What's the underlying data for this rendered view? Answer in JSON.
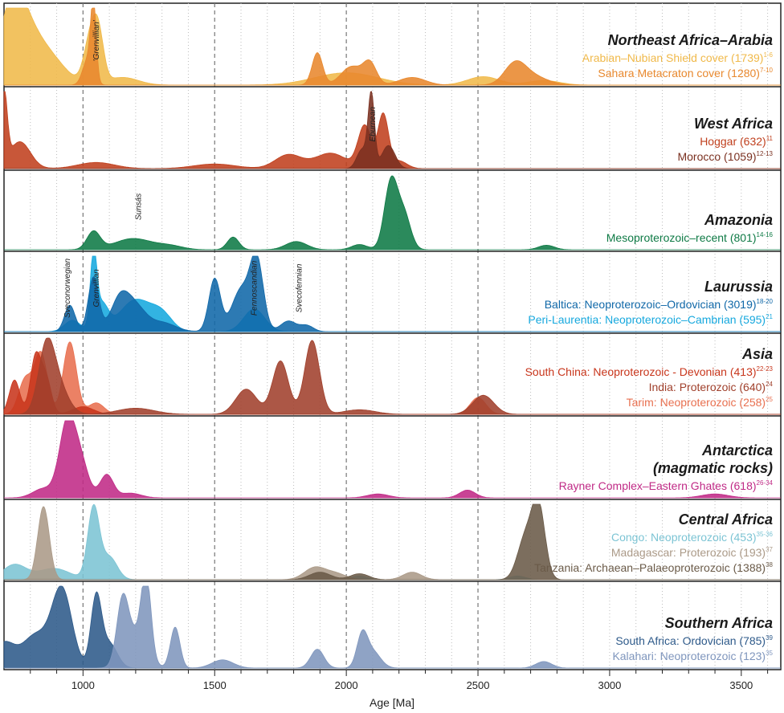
{
  "chart_data": {
    "type": "area",
    "xlabel": "Age [Ma]",
    "xlim": [
      700,
      3650
    ],
    "xticks": [
      1000,
      1500,
      2000,
      2500,
      3000,
      3500
    ],
    "minor_step": 100,
    "dashed_lines": [
      1000,
      1500,
      2000,
      2500
    ],
    "panels": [
      {
        "title_lines": [
          "Northeast Africa–Arabia"
        ],
        "entries": [
          {
            "label": "Arabian–Nubian Shield cover (1739)",
            "sup": "1-6",
            "color": "#f0b94a"
          },
          {
            "label": "Sahara Metacraton cover (1280)",
            "sup": "7-10",
            "color": "#e8882e"
          }
        ],
        "series": [
          {
            "name": "Arabian–Nubian Shield cover (1739)",
            "color": "#f0b94a",
            "peaks": [
              [
                700,
                0.04,
                30
              ],
              [
                730,
                0.88,
                45
              ],
              [
                790,
                0.55,
                55
              ],
              [
                880,
                0.3,
                60
              ],
              [
                1030,
                0.62,
                25
              ],
              [
                1060,
                0.5,
                20
              ],
              [
                1150,
                0.1,
                60
              ],
              [
                2000,
                0.16,
                120
              ],
              [
                2520,
                0.11,
                60
              ],
              [
                2750,
                0.06,
                60
              ]
            ]
          },
          {
            "name": "Sahara Metacraton cover (1280)",
            "color": "#e8882e",
            "peaks": [
              [
                1040,
                0.95,
                10
              ],
              [
                1020,
                0.35,
                20
              ],
              [
                1890,
                0.42,
                20
              ],
              [
                2020,
                0.24,
                40
              ],
              [
                2090,
                0.27,
                25
              ],
              [
                2250,
                0.1,
                50
              ],
              [
                2640,
                0.24,
                40
              ],
              [
                2700,
                0.12,
                60
              ]
            ]
          }
        ]
      },
      {
        "title_lines": [
          "West Africa"
        ],
        "entries": [
          {
            "label": "Hoggar (632)",
            "sup": "11",
            "color": "#c0401e"
          },
          {
            "label": "Morocco (1059)",
            "sup": "12-13",
            "color": "#7a3020"
          }
        ],
        "series": [
          {
            "name": "Hoggar (632)",
            "color": "#c0401e",
            "peaks": [
              [
                700,
                0.95,
                12
              ],
              [
                760,
                0.35,
                40
              ],
              [
                1050,
                0.08,
                70
              ],
              [
                1500,
                0.06,
                80
              ],
              [
                1780,
                0.18,
                50
              ],
              [
                1940,
                0.2,
                60
              ],
              [
                2070,
                0.55,
                25
              ],
              [
                2140,
                0.7,
                20
              ],
              [
                2200,
                0.1,
                30
              ]
            ]
          },
          {
            "name": "Morocco (1059)",
            "color": "#7a3020",
            "peaks": [
              [
                2095,
                0.95,
                12
              ],
              [
                2160,
                0.3,
                25
              ],
              [
                2060,
                0.25,
                20
              ]
            ]
          }
        ]
      },
      {
        "title_lines": [
          "Amazonia"
        ],
        "entries": [
          {
            "label": "Mesoproterozoic–recent (801)",
            "sup": "14-16",
            "color": "#0e7a45"
          }
        ],
        "series": [
          {
            "name": "Mesoproterozoic–recent (801)",
            "color": "#0e7a45",
            "peaks": [
              [
                1040,
                0.24,
                25
              ],
              [
                1190,
                0.15,
                70
              ],
              [
                1330,
                0.05,
                50
              ],
              [
                1570,
                0.17,
                22
              ],
              [
                1810,
                0.11,
                40
              ],
              [
                2050,
                0.07,
                30
              ],
              [
                2170,
                0.92,
                25
              ],
              [
                2220,
                0.45,
                25
              ],
              [
                2760,
                0.06,
                30
              ]
            ]
          }
        ]
      },
      {
        "title_lines": [
          "Laurussia"
        ],
        "entries": [
          {
            "label": "Baltica: Neoproterozoic–Ordovician (3019)",
            "sup": "18-20",
            "color": "#1068a8"
          },
          {
            "label": "Peri-Laurentia: Neoproterozoic–Cambrian (595)",
            "sup": "21",
            "color": "#16a8de"
          }
        ],
        "series": [
          {
            "name": "Peri-Laurentia: Neoproterozoic–Cambrian (595)",
            "color": "#16a8de",
            "peaks": [
              [
                1040,
                0.95,
                12
              ],
              [
                1070,
                0.35,
                25
              ],
              [
                1200,
                0.42,
                60
              ],
              [
                1300,
                0.2,
                40
              ],
              [
                960,
                0.15,
                30
              ],
              [
                1650,
                0.3,
                40
              ]
            ]
          },
          {
            "name": "Baltica: Neoproterozoic–Ordovician (3019)",
            "color": "#1068a8",
            "peaks": [
              [
                950,
                0.35,
                20
              ],
              [
                1040,
                0.72,
                20
              ],
              [
                1140,
                0.42,
                35
              ],
              [
                1200,
                0.3,
                40
              ],
              [
                1300,
                0.12,
                50
              ],
              [
                1500,
                0.7,
                22
              ],
              [
                1600,
                0.55,
                35
              ],
              [
                1660,
                0.92,
                25
              ],
              [
                1780,
                0.14,
                30
              ],
              [
                1850,
                0.08,
                25
              ]
            ]
          }
        ]
      },
      {
        "title_lines": [
          "Asia"
        ],
        "entries": [
          {
            "label": "South China: Neoproterozoic - Devonian (413)",
            "sup": "22-23",
            "color": "#c8361c"
          },
          {
            "label": "India: Proterozoic (640)",
            "sup": "24",
            "color": "#a0402c"
          },
          {
            "label": "Tarim: Neoproterozoic (258)",
            "sup": "25",
            "color": "#e87050"
          }
        ],
        "series": [
          {
            "name": "Tarim: Neoproterozoic (258)",
            "color": "#e87050",
            "peaks": [
              [
                780,
                0.45,
                25
              ],
              [
                840,
                0.8,
                25
              ],
              [
                950,
                0.95,
                25
              ],
              [
                1050,
                0.15,
                30
              ],
              [
                2500,
                0.22,
                30
              ]
            ]
          },
          {
            "name": "South China: Neoproterozoic - Devonian (413)",
            "color": "#c8361c",
            "peaks": [
              [
                740,
                0.45,
                20
              ],
              [
                820,
                0.75,
                20
              ],
              [
                860,
                0.45,
                20
              ],
              [
                1000,
                0.1,
                40
              ]
            ]
          },
          {
            "name": "India: Proterozoic (640)",
            "color": "#a0402c",
            "peaks": [
              [
                860,
                0.75,
                30
              ],
              [
                900,
                0.4,
                40
              ],
              [
                1200,
                0.08,
                70
              ],
              [
                1620,
                0.33,
                40
              ],
              [
                1750,
                0.7,
                30
              ],
              [
                1870,
                0.97,
                28
              ],
              [
                2050,
                0.06,
                60
              ],
              [
                2520,
                0.25,
                40
              ]
            ]
          }
        ]
      },
      {
        "title_lines": [
          "Antarctica",
          "(magmatic rocks)"
        ],
        "entries": [
          {
            "label": "Rayner Complex–Eastern Ghates (618)",
            "sup": "26-34",
            "color": "#c02a86"
          }
        ],
        "series": [
          {
            "name": "Rayner Complex–Eastern Ghates (618)",
            "color": "#c02a86",
            "peaks": [
              [
                940,
                0.95,
                30
              ],
              [
                990,
                0.45,
                30
              ],
              [
                1090,
                0.3,
                25
              ],
              [
                850,
                0.12,
                40
              ],
              [
                1180,
                0.06,
                40
              ],
              [
                2120,
                0.05,
                40
              ],
              [
                2460,
                0.1,
                30
              ],
              [
                3400,
                0.05,
                50
              ]
            ]
          }
        ]
      },
      {
        "title_lines": [
          "Central Africa"
        ],
        "entries": [
          {
            "label": "Congo: Neoproterozoic (453)",
            "sup": "35-36",
            "color": "#7cc4d4"
          },
          {
            "label": "Madagascar: Proterozoic (193)",
            "sup": "37",
            "color": "#ab9a88"
          },
          {
            "label": "Tanzania: Archaean–Palaeoproterozoic (1388)",
            "sup": "38",
            "color": "#6a5a48"
          }
        ],
        "series": [
          {
            "name": "Congo: Neoproterozoic (453)",
            "color": "#7cc4d4",
            "peaks": [
              [
                740,
                0.2,
                45
              ],
              [
                890,
                0.15,
                60
              ],
              [
                1040,
                0.95,
                22
              ],
              [
                1100,
                0.3,
                30
              ],
              [
                2050,
                0.05,
                30
              ],
              [
                2650,
                0.05,
                30
              ]
            ]
          },
          {
            "name": "Madagascar: Proterozoic (193)",
            "color": "#ab9a88",
            "peaks": [
              [
                850,
                0.97,
                22
              ],
              [
                1880,
                0.16,
                40
              ],
              [
                1960,
                0.08,
                40
              ],
              [
                2250,
                0.1,
                35
              ]
            ]
          },
          {
            "name": "Tanzania: Archaean–Palaeoproterozoic (1388)",
            "color": "#6a5a48",
            "peaks": [
              [
                2730,
                0.95,
                25
              ],
              [
                2680,
                0.55,
                30
              ],
              [
                1900,
                0.1,
                40
              ],
              [
                2050,
                0.08,
                35
              ]
            ]
          }
        ]
      },
      {
        "title_lines": [
          "Southern Africa"
        ],
        "entries": [
          {
            "label": "South Africa: Ordovician (785)",
            "sup": "39",
            "color": "#2e5a8a"
          },
          {
            "label": "Kalahari: Neoproterozoic (123)",
            "sup": "35",
            "color": "#7f96bd"
          }
        ],
        "series": [
          {
            "name": "South Africa: Ordovician (785)",
            "color": "#2e5a8a",
            "peaks": [
              [
                700,
                0.3,
                40
              ],
              [
                820,
                0.4,
                50
              ],
              [
                920,
                0.95,
                38
              ],
              [
                1050,
                0.85,
                20
              ],
              [
                1100,
                0.3,
                30
              ]
            ]
          },
          {
            "name": "Kalahari: Neoproterozoic (123)",
            "color": "#7f96bd",
            "peaks": [
              [
                1150,
                0.72,
                22
              ],
              [
                1240,
                0.95,
                18
              ],
              [
                1350,
                0.5,
                18
              ],
              [
                1200,
                0.4,
                40
              ],
              [
                1530,
                0.1,
                40
              ],
              [
                1890,
                0.23,
                25
              ],
              [
                2060,
                0.38,
                20
              ],
              [
                2100,
                0.2,
                30
              ],
              [
                2750,
                0.08,
                30
              ]
            ]
          }
        ]
      }
    ],
    "annotations": [
      {
        "text": "'Grenvillian'",
        "x": 1060,
        "panel": 0
      },
      {
        "text": "Eburnean",
        "x": 2110,
        "panel": 1
      },
      {
        "text": "Sunsás",
        "x": 1220,
        "panel": 2
      },
      {
        "text": "Sveconorwegian",
        "x": 950,
        "panel": 3
      },
      {
        "text": "Grenvillian",
        "x": 1060,
        "panel": 3
      },
      {
        "text": "Fennoscandian",
        "x": 1660,
        "panel": 3
      },
      {
        "text": "Svecofennian",
        "x": 1830,
        "panel": 3
      }
    ]
  }
}
